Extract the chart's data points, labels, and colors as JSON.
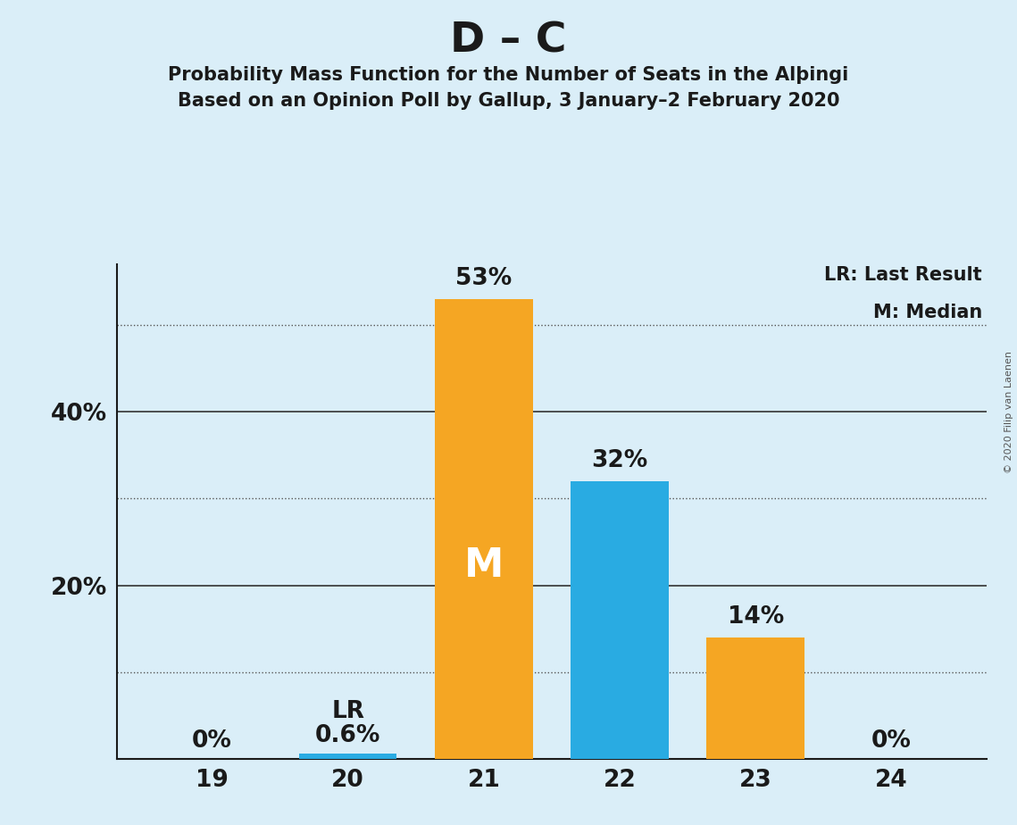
{
  "title": "D – C",
  "subtitle1": "Probability Mass Function for the Number of Seats in the Alþingi",
  "subtitle2": "Based on an Opinion Poll by Gallup, 3 January–2 February 2020",
  "copyright": "© 2020 Filip van Laenen",
  "categories": [
    19,
    20,
    21,
    22,
    23,
    24
  ],
  "values": [
    0.0,
    0.6,
    53.0,
    32.0,
    14.0,
    0.0
  ],
  "bar_colors": [
    "#F5A623",
    "#29ABE2",
    "#F5A623",
    "#29ABE2",
    "#F5A623",
    "#F5A623"
  ],
  "value_labels": [
    "0%",
    "0.6%",
    "53%",
    "32%",
    "14%",
    "0%"
  ],
  "lr_bar_index": 1,
  "median_bar_index": 2,
  "legend_text": [
    "LR: Last Result",
    "M: Median"
  ],
  "background_color": "#DAEEF8",
  "solid_gridlines": [
    20,
    40
  ],
  "dotted_gridlines": [
    10,
    30,
    50
  ],
  "ytick_positions": [
    20,
    40
  ],
  "ytick_labels": [
    "20%",
    "40%"
  ],
  "ylim": [
    0,
    57
  ],
  "grid_color": "#333333",
  "dotted_color": "#555555",
  "title_fontsize": 34,
  "subtitle_fontsize": 15,
  "label_fontsize": 19,
  "tick_fontsize": 19,
  "legend_fontsize": 15,
  "bar_width": 0.72,
  "xlim": [
    18.3,
    24.7
  ]
}
